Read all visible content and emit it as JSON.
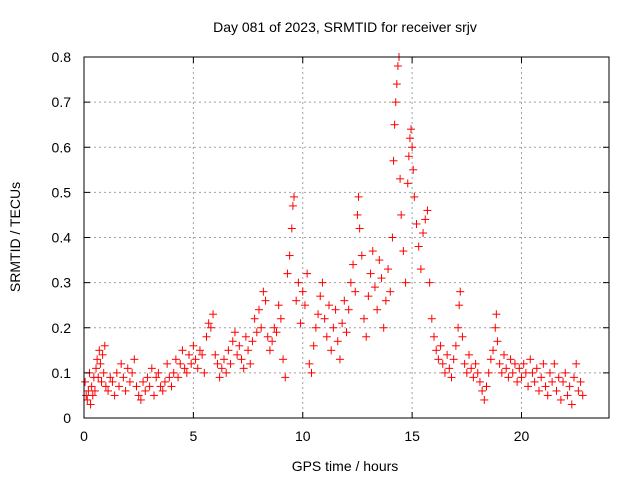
{
  "chart_data": {
    "type": "scatter",
    "title": "Day 081 of 2023, SRMTID for receiver srjv",
    "xlabel": "GPS time / hours",
    "ylabel": "SRMTID / TECUs",
    "xlim": [
      0,
      24
    ],
    "ylim": [
      0,
      0.8
    ],
    "xticks": [
      0,
      5,
      10,
      15,
      20
    ],
    "xtick_labels": [
      "0",
      "5",
      "10",
      "15",
      "20"
    ],
    "yticks": [
      0,
      0.1,
      0.2,
      0.3,
      0.4,
      0.5,
      0.6,
      0.7,
      0.8
    ],
    "ytick_labels": [
      "0",
      "0.1",
      "0.2",
      "0.3",
      "0.4",
      "0.5",
      "0.6",
      "0.7",
      "0.8"
    ],
    "grid": true,
    "marker": "+",
    "color": "#ff0000",
    "series": [
      {
        "name": "SRMTID",
        "points": [
          [
            0.05,
            0.08
          ],
          [
            0.1,
            0.05
          ],
          [
            0.15,
            0.04
          ],
          [
            0.2,
            0.06
          ],
          [
            0.25,
            0.1
          ],
          [
            0.3,
            0.03
          ],
          [
            0.35,
            0.07
          ],
          [
            0.4,
            0.05
          ],
          [
            0.45,
            0.09
          ],
          [
            0.5,
            0.06
          ],
          [
            0.55,
            0.11
          ],
          [
            0.6,
            0.13
          ],
          [
            0.65,
            0.09
          ],
          [
            0.7,
            0.15
          ],
          [
            0.75,
            0.12
          ],
          [
            0.8,
            0.08
          ],
          [
            0.85,
            0.14
          ],
          [
            0.9,
            0.1
          ],
          [
            0.95,
            0.16
          ],
          [
            1.0,
            0.07
          ],
          [
            1.1,
            0.06
          ],
          [
            1.2,
            0.09
          ],
          [
            1.3,
            0.08
          ],
          [
            1.4,
            0.05
          ],
          [
            1.5,
            0.1
          ],
          [
            1.6,
            0.07
          ],
          [
            1.7,
            0.12
          ],
          [
            1.8,
            0.09
          ],
          [
            1.9,
            0.06
          ],
          [
            2.0,
            0.11
          ],
          [
            2.1,
            0.08
          ],
          [
            2.2,
            0.1
          ],
          [
            2.3,
            0.13
          ],
          [
            2.4,
            0.07
          ],
          [
            2.5,
            0.05
          ],
          [
            2.6,
            0.04
          ],
          [
            2.7,
            0.08
          ],
          [
            2.8,
            0.06
          ],
          [
            2.9,
            0.09
          ],
          [
            3.0,
            0.07
          ],
          [
            3.1,
            0.11
          ],
          [
            3.2,
            0.05
          ],
          [
            3.3,
            0.09
          ],
          [
            3.4,
            0.1
          ],
          [
            3.5,
            0.07
          ],
          [
            3.6,
            0.06
          ],
          [
            3.7,
            0.08
          ],
          [
            3.8,
            0.12
          ],
          [
            3.9,
            0.09
          ],
          [
            4.0,
            0.07
          ],
          [
            4.1,
            0.1
          ],
          [
            4.2,
            0.13
          ],
          [
            4.3,
            0.09
          ],
          [
            4.4,
            0.12
          ],
          [
            4.5,
            0.15
          ],
          [
            4.6,
            0.11
          ],
          [
            4.7,
            0.1
          ],
          [
            4.8,
            0.14
          ],
          [
            4.9,
            0.12
          ],
          [
            5.0,
            0.16
          ],
          [
            5.1,
            0.13
          ],
          [
            5.2,
            0.11
          ],
          [
            5.3,
            0.15
          ],
          [
            5.4,
            0.14
          ],
          [
            5.5,
            0.1
          ],
          [
            5.6,
            0.18
          ],
          [
            5.7,
            0.21
          ],
          [
            5.8,
            0.2
          ],
          [
            5.9,
            0.23
          ],
          [
            6.0,
            0.14
          ],
          [
            6.1,
            0.12
          ],
          [
            6.2,
            0.09
          ],
          [
            6.3,
            0.11
          ],
          [
            6.4,
            0.13
          ],
          [
            6.5,
            0.1
          ],
          [
            6.6,
            0.15
          ],
          [
            6.7,
            0.12
          ],
          [
            6.8,
            0.17
          ],
          [
            6.9,
            0.19
          ],
          [
            7.0,
            0.14
          ],
          [
            7.1,
            0.16
          ],
          [
            7.2,
            0.13
          ],
          [
            7.3,
            0.11
          ],
          [
            7.4,
            0.18
          ],
          [
            7.5,
            0.15
          ],
          [
            7.6,
            0.12
          ],
          [
            7.7,
            0.17
          ],
          [
            7.8,
            0.22
          ],
          [
            7.9,
            0.19
          ],
          [
            8.0,
            0.24
          ],
          [
            8.1,
            0.2
          ],
          [
            8.2,
            0.28
          ],
          [
            8.3,
            0.26
          ],
          [
            8.4,
            0.18
          ],
          [
            8.5,
            0.15
          ],
          [
            8.6,
            0.17
          ],
          [
            8.7,
            0.2
          ],
          [
            8.8,
            0.19
          ],
          [
            8.9,
            0.25
          ],
          [
            9.0,
            0.22
          ],
          [
            9.1,
            0.13
          ],
          [
            9.2,
            0.09
          ],
          [
            9.3,
            0.32
          ],
          [
            9.4,
            0.36
          ],
          [
            9.5,
            0.42
          ],
          [
            9.55,
            0.47
          ],
          [
            9.6,
            0.49
          ],
          [
            9.7,
            0.26
          ],
          [
            9.8,
            0.3
          ],
          [
            9.9,
            0.21
          ],
          [
            10.0,
            0.28
          ],
          [
            10.1,
            0.25
          ],
          [
            10.2,
            0.32
          ],
          [
            10.3,
            0.12
          ],
          [
            10.4,
            0.1
          ],
          [
            10.5,
            0.16
          ],
          [
            10.6,
            0.2
          ],
          [
            10.7,
            0.23
          ],
          [
            10.8,
            0.27
          ],
          [
            10.9,
            0.3
          ],
          [
            11.0,
            0.22
          ],
          [
            11.1,
            0.18
          ],
          [
            11.2,
            0.25
          ],
          [
            11.3,
            0.15
          ],
          [
            11.4,
            0.2
          ],
          [
            11.5,
            0.24
          ],
          [
            11.6,
            0.17
          ],
          [
            11.7,
            0.13
          ],
          [
            11.8,
            0.21
          ],
          [
            11.9,
            0.26
          ],
          [
            12.0,
            0.19
          ],
          [
            12.1,
            0.24
          ],
          [
            12.2,
            0.3
          ],
          [
            12.3,
            0.34
          ],
          [
            12.4,
            0.28
          ],
          [
            12.5,
            0.45
          ],
          [
            12.55,
            0.49
          ],
          [
            12.6,
            0.42
          ],
          [
            12.7,
            0.36
          ],
          [
            12.8,
            0.22
          ],
          [
            12.9,
            0.18
          ],
          [
            13.0,
            0.27
          ],
          [
            13.1,
            0.32
          ],
          [
            13.2,
            0.37
          ],
          [
            13.3,
            0.29
          ],
          [
            13.4,
            0.24
          ],
          [
            13.5,
            0.35
          ],
          [
            13.6,
            0.31
          ],
          [
            13.7,
            0.2
          ],
          [
            13.8,
            0.26
          ],
          [
            13.9,
            0.33
          ],
          [
            14.0,
            0.28
          ],
          [
            14.1,
            0.4
          ],
          [
            14.15,
            0.57
          ],
          [
            14.2,
            0.65
          ],
          [
            14.25,
            0.7
          ],
          [
            14.3,
            0.74
          ],
          [
            14.35,
            0.78
          ],
          [
            14.4,
            0.8
          ],
          [
            14.45,
            0.53
          ],
          [
            14.5,
            0.45
          ],
          [
            14.6,
            0.37
          ],
          [
            14.7,
            0.3
          ],
          [
            14.8,
            0.52
          ],
          [
            14.85,
            0.58
          ],
          [
            14.9,
            0.62
          ],
          [
            14.95,
            0.64
          ],
          [
            15.0,
            0.6
          ],
          [
            15.05,
            0.55
          ],
          [
            15.1,
            0.49
          ],
          [
            15.2,
            0.43
          ],
          [
            15.3,
            0.38
          ],
          [
            15.4,
            0.33
          ],
          [
            15.5,
            0.41
          ],
          [
            15.6,
            0.44
          ],
          [
            15.7,
            0.46
          ],
          [
            15.8,
            0.3
          ],
          [
            15.9,
            0.22
          ],
          [
            16.0,
            0.18
          ],
          [
            16.1,
            0.15
          ],
          [
            16.2,
            0.13
          ],
          [
            16.3,
            0.16
          ],
          [
            16.4,
            0.12
          ],
          [
            16.5,
            0.1
          ],
          [
            16.6,
            0.14
          ],
          [
            16.7,
            0.11
          ],
          [
            16.8,
            0.09
          ],
          [
            16.9,
            0.13
          ],
          [
            17.0,
            0.16
          ],
          [
            17.1,
            0.2
          ],
          [
            17.15,
            0.25
          ],
          [
            17.2,
            0.28
          ],
          [
            17.3,
            0.18
          ],
          [
            17.4,
            0.12
          ],
          [
            17.5,
            0.1
          ],
          [
            17.6,
            0.14
          ],
          [
            17.7,
            0.11
          ],
          [
            17.8,
            0.09
          ],
          [
            17.9,
            0.12
          ],
          [
            18.0,
            0.1
          ],
          [
            18.1,
            0.08
          ],
          [
            18.2,
            0.06
          ],
          [
            18.3,
            0.04
          ],
          [
            18.4,
            0.07
          ],
          [
            18.5,
            0.1
          ],
          [
            18.6,
            0.13
          ],
          [
            18.7,
            0.15
          ],
          [
            18.8,
            0.2
          ],
          [
            18.85,
            0.23
          ],
          [
            18.9,
            0.17
          ],
          [
            19.0,
            0.12
          ],
          [
            19.1,
            0.1
          ],
          [
            19.2,
            0.14
          ],
          [
            19.3,
            0.11
          ],
          [
            19.4,
            0.09
          ],
          [
            19.5,
            0.13
          ],
          [
            19.6,
            0.1
          ],
          [
            19.7,
            0.12
          ],
          [
            19.8,
            0.08
          ],
          [
            19.9,
            0.11
          ],
          [
            20.0,
            0.09
          ],
          [
            20.1,
            0.12
          ],
          [
            20.2,
            0.1
          ],
          [
            20.3,
            0.07
          ],
          [
            20.4,
            0.13
          ],
          [
            20.5,
            0.1
          ],
          [
            20.6,
            0.08
          ],
          [
            20.7,
            0.11
          ],
          [
            20.8,
            0.06
          ],
          [
            20.9,
            0.09
          ],
          [
            21.0,
            0.12
          ],
          [
            21.1,
            0.07
          ],
          [
            21.2,
            0.05
          ],
          [
            21.3,
            0.1
          ],
          [
            21.4,
            0.08
          ],
          [
            21.5,
            0.12
          ],
          [
            21.6,
            0.06
          ],
          [
            21.7,
            0.09
          ],
          [
            21.8,
            0.04
          ],
          [
            21.9,
            0.08
          ],
          [
            22.0,
            0.1
          ],
          [
            22.1,
            0.05
          ],
          [
            22.2,
            0.07
          ],
          [
            22.3,
            0.03
          ],
          [
            22.4,
            0.09
          ],
          [
            22.5,
            0.12
          ],
          [
            22.6,
            0.06
          ],
          [
            22.7,
            0.08
          ],
          [
            22.8,
            0.05
          ]
        ]
      }
    ]
  }
}
